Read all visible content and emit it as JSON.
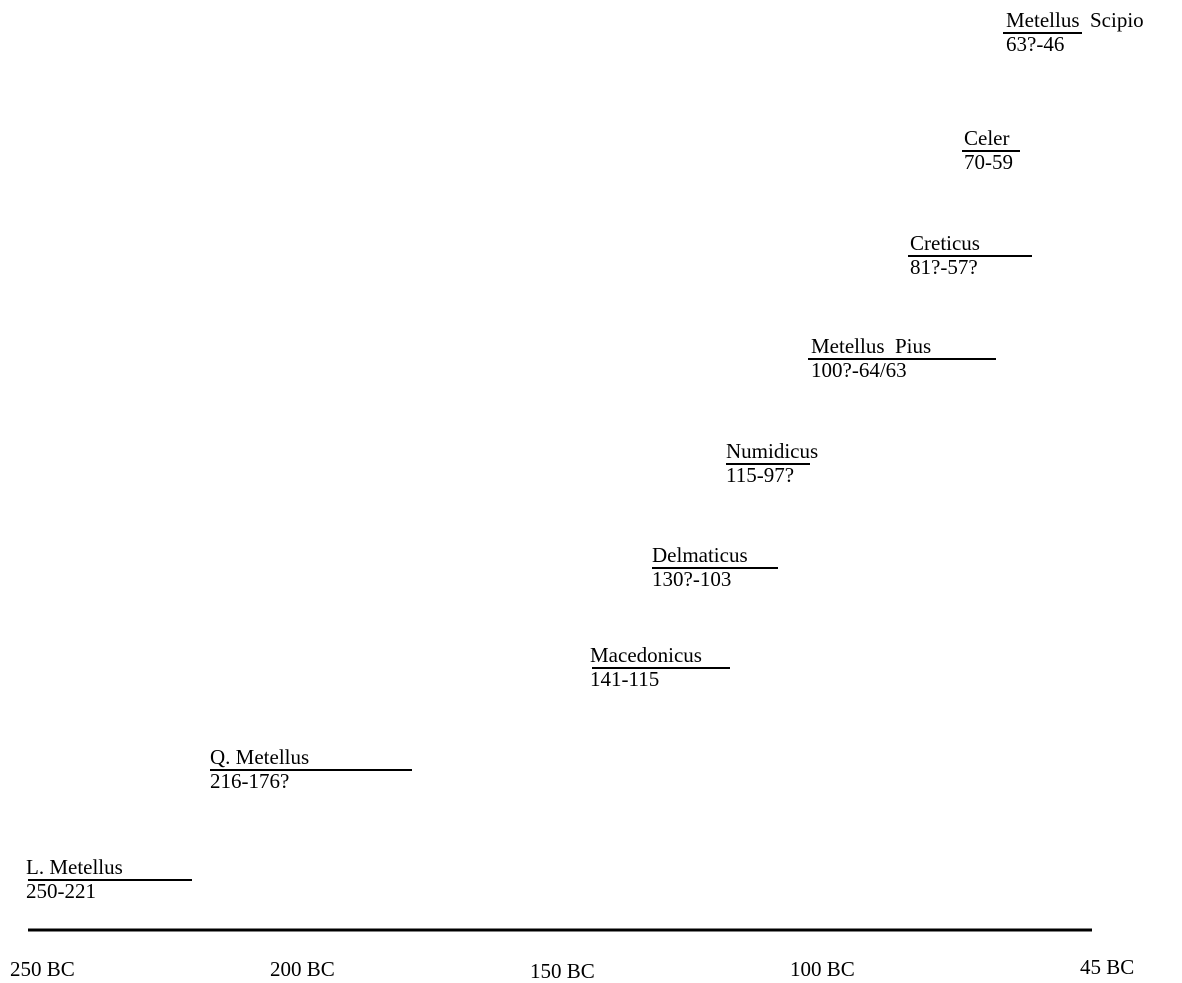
{
  "chart_data": {
    "type": "timeline",
    "axis": {
      "ticks": [
        {
          "value": -250,
          "label": "250 BC"
        },
        {
          "value": -200,
          "label": "200 BC"
        },
        {
          "value": -150,
          "label": "150 BC"
        },
        {
          "value": -100,
          "label": "100 BC"
        },
        {
          "value": -45,
          "label": "45 BC"
        }
      ],
      "range": [
        -250,
        -45
      ]
    },
    "entries": [
      {
        "name": "L. Metellus",
        "dates": "250-221",
        "start": -250,
        "end": -221
      },
      {
        "name": "Q. Metellus",
        "dates": "216-176?",
        "start": -216,
        "end": -176
      },
      {
        "name": "Macedonicus",
        "dates": "141-115",
        "start": -141,
        "end": -115
      },
      {
        "name": "Delmaticus",
        "dates": "130?-103",
        "start": -130,
        "end": -103
      },
      {
        "name": "Numidicus",
        "dates": "115-97?",
        "start": -115,
        "end": -97
      },
      {
        "name": "Metellus  Pius",
        "dates": "100?-64/63",
        "start": -100,
        "end": -63
      },
      {
        "name": "Creticus",
        "dates": "81?-57?",
        "start": -81,
        "end": -57
      },
      {
        "name": "Celer",
        "dates": "70-59",
        "start": -70,
        "end": -59
      },
      {
        "name": "Metellus  Scipio",
        "dates": "63?-46",
        "start": -63,
        "end": -46
      }
    ]
  }
}
